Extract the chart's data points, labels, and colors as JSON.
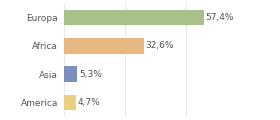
{
  "categories": [
    "Europa",
    "Africa",
    "Asia",
    "America"
  ],
  "values": [
    57.4,
    32.6,
    5.3,
    4.7
  ],
  "labels": [
    "57,4%",
    "32,6%",
    "5,3%",
    "4,7%"
  ],
  "bar_colors": [
    "#a8c08a",
    "#e8b882",
    "#7b8fbf",
    "#e8d080"
  ],
  "background_color": "#ffffff",
  "xlim": [
    0,
    75
  ],
  "label_fontsize": 6.5,
  "category_fontsize": 6.5,
  "bar_height": 0.55,
  "grid_color": "#dddddd",
  "text_color": "#555555"
}
